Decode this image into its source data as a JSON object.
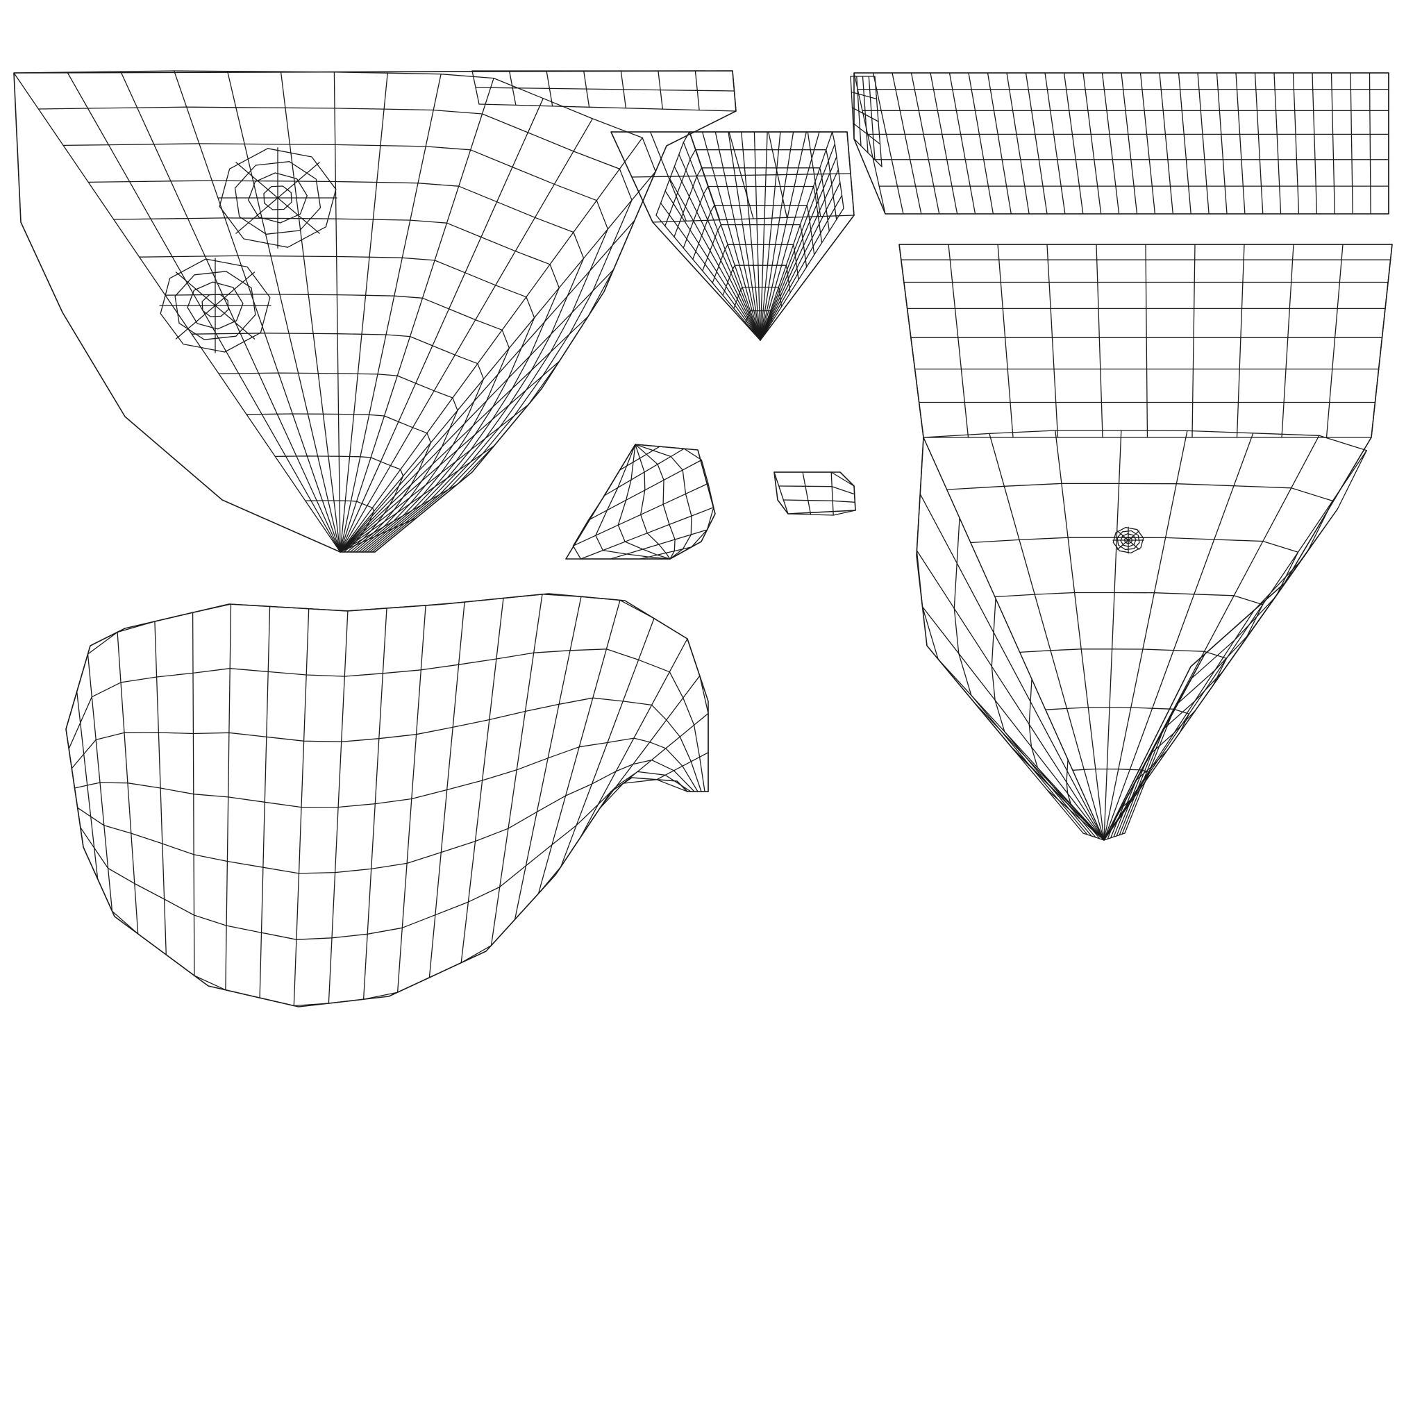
{
  "diagram": {
    "kind": "uv-wireframe-layout",
    "background_color": "#ffffff",
    "line_color": "#1a1a1a",
    "islands": [
      {
        "id": "top-left-fan",
        "shape": "fan",
        "has_swirl_poles": true
      },
      {
        "id": "top-center-cone",
        "shape": "cone"
      },
      {
        "id": "top-right-strip",
        "shape": "strip"
      },
      {
        "id": "right-fan",
        "shape": "fan"
      },
      {
        "id": "small-wedge",
        "shape": "wedge"
      },
      {
        "id": "small-piece",
        "shape": "small-quad"
      },
      {
        "id": "bottom-left-blob",
        "shape": "bean"
      }
    ]
  }
}
